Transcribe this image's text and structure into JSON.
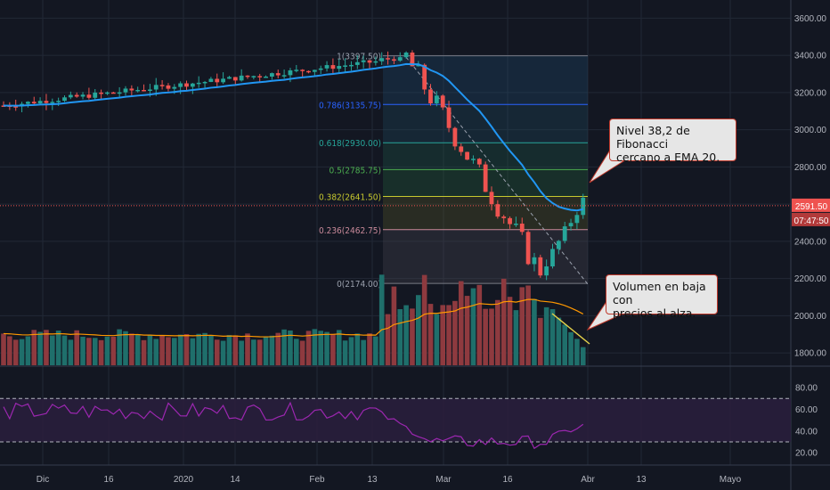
{
  "chart_data": {
    "type": "candlestick",
    "price_ticks": [
      "3600.00",
      "3400.00",
      "3200.00",
      "3000.00",
      "2800.00",
      "2600.00",
      "2400.00",
      "2200.00",
      "2000.00",
      "1800.00"
    ],
    "rsi_ticks": [
      "80.00",
      "60.00",
      "40.00",
      "20.00"
    ],
    "x_ticks": [
      "Dic",
      "16",
      "2020",
      "14",
      "Feb",
      "13",
      "Mar",
      "16",
      "Abr",
      "13",
      "Mayo"
    ],
    "price_label": "2591.50",
    "time_label": "07:47:50",
    "fib_levels": [
      {
        "ratio": 1,
        "price": 3397.5,
        "label": "1(3397.50)"
      },
      {
        "ratio": 0.786,
        "price": 3135.75,
        "label": "0.786(3135.75)"
      },
      {
        "ratio": 0.618,
        "price": 2930.0,
        "label": "0.618(2930.00)"
      },
      {
        "ratio": 0.5,
        "price": 2785.75,
        "label": "0.5(2785.75)"
      },
      {
        "ratio": 0.382,
        "price": 2641.5,
        "label": "0.382(2641.50)"
      },
      {
        "ratio": 0.236,
        "price": 2462.75,
        "label": "0.236(2462.75)"
      },
      {
        "ratio": 0,
        "price": 2174.0,
        "label": "0(2174.00)"
      }
    ],
    "colors": {
      "up": "#26a69a",
      "down": "#ef5350",
      "ema": "#2196f3",
      "volume_up": "#1f6f6b",
      "volume_down": "#8e3a3f",
      "volume_ma": "#ff9800",
      "rsi": "#9c27b0",
      "price_line": "#ef5350"
    }
  },
  "annotations": {
    "fib_note": "Nivel 38,2 de Fibonacci\ncercano a EMA 20.",
    "volume_note": "Volumen en baja con\nprecios al alza."
  }
}
